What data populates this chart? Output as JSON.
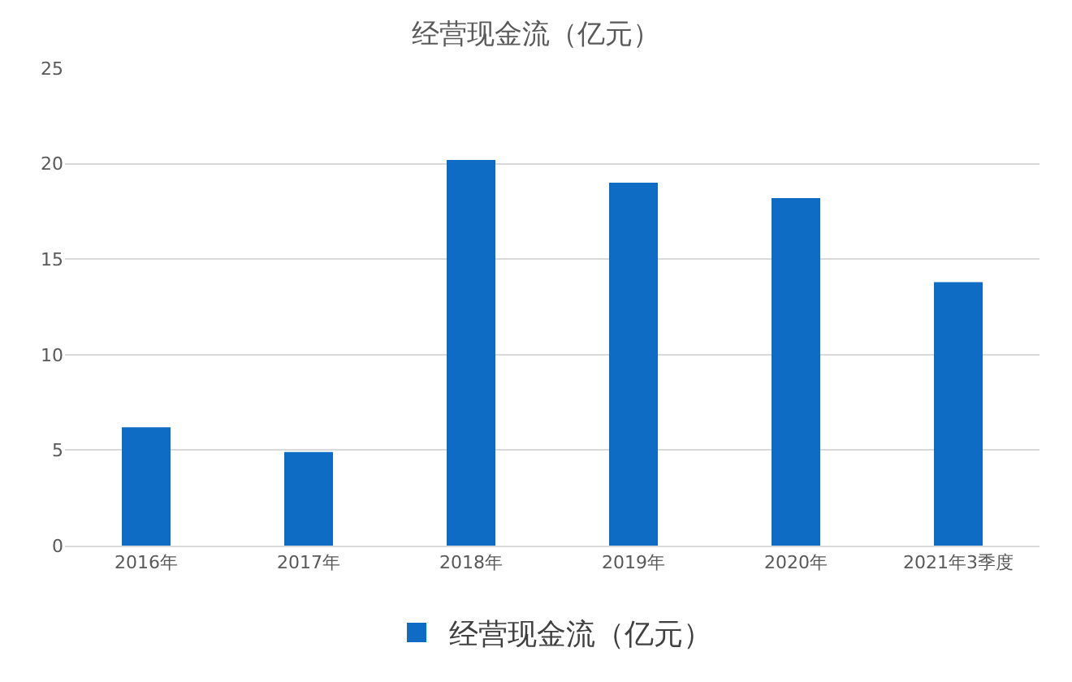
{
  "chart_data": {
    "type": "bar",
    "title": "经营现金流（亿元）",
    "categories": [
      "2016年",
      "2017年",
      "2018年",
      "2019年",
      "2020年",
      "2021年3季度"
    ],
    "series": [
      {
        "name": "经营现金流（亿元）",
        "color": "#0f6cc4",
        "values": [
          6.2,
          4.9,
          20.2,
          19.0,
          18.2,
          13.8
        ]
      }
    ],
    "ylim": [
      0,
      25
    ],
    "yticks": [
      0,
      5,
      10,
      15,
      20,
      25
    ],
    "grid": "y",
    "legend": "bottom"
  }
}
